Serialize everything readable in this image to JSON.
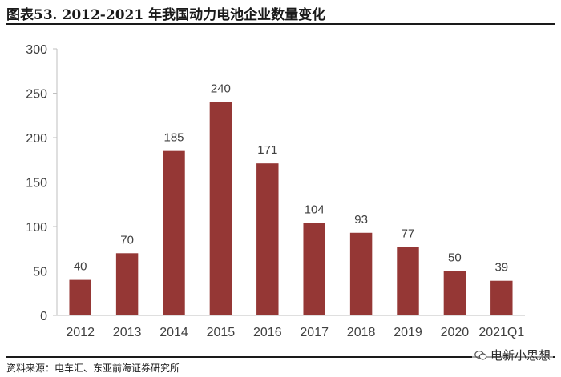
{
  "title": "图表53. 2012-2021 年我国动力电池企业数量变化",
  "source": "资料来源：电车汇、东亚前海证券研究所",
  "watermark": "电新小思想",
  "colors": {
    "bar": "#953735",
    "axis": "#bfbfbf",
    "text": "#404040"
  },
  "chart_data": {
    "type": "bar",
    "categories": [
      "2012",
      "2013",
      "2014",
      "2015",
      "2016",
      "2017",
      "2018",
      "2019",
      "2020",
      "2021Q1"
    ],
    "values": [
      40,
      70,
      185,
      240,
      171,
      104,
      93,
      77,
      50,
      39
    ],
    "ylim": [
      0,
      300
    ],
    "yticks": [
      0,
      50,
      100,
      150,
      200,
      250,
      300
    ],
    "title": "",
    "xlabel": "",
    "ylabel": "",
    "grid": false,
    "data_labels": true
  }
}
